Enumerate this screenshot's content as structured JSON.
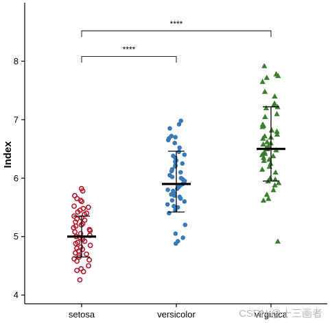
{
  "chart_data": {
    "type": "scatter",
    "subtype": "jitter-strip with mean ± sd error bars",
    "ylabel": "Index",
    "xlabel": "",
    "ylim": [
      3.85,
      9.0
    ],
    "yticks": [
      4,
      5,
      6,
      7,
      8
    ],
    "categories": [
      "setosa",
      "versicolor",
      "virginica"
    ],
    "grid": false,
    "series": [
      {
        "category": "setosa",
        "marker": "open-circle",
        "color": "#b2182b",
        "mean": 5.0,
        "sd_lower": 4.65,
        "sd_upper": 5.35,
        "values": [
          5.82,
          5.78,
          5.7,
          5.65,
          5.62,
          5.6,
          5.52,
          5.5,
          5.48,
          5.45,
          5.42,
          5.4,
          5.38,
          5.35,
          5.32,
          5.3,
          5.28,
          5.25,
          5.22,
          5.2,
          5.18,
          5.15,
          5.12,
          5.1,
          5.08,
          5.05,
          5.02,
          5.0,
          4.98,
          4.95,
          4.92,
          4.9,
          4.88,
          4.85,
          4.82,
          4.8,
          4.78,
          4.75,
          4.72,
          4.7,
          4.68,
          4.65,
          4.62,
          4.6,
          4.58,
          4.5,
          4.45,
          4.42,
          4.4,
          4.26
        ]
      },
      {
        "category": "versicolor",
        "marker": "filled-circle",
        "color": "#3a7ab6",
        "mean": 5.9,
        "sd_lower": 5.42,
        "sd_upper": 6.46,
        "values": [
          6.98,
          6.92,
          6.85,
          6.72,
          6.7,
          6.68,
          6.65,
          6.6,
          6.52,
          6.45,
          6.4,
          6.38,
          6.35,
          6.3,
          6.28,
          6.25,
          6.22,
          6.2,
          6.15,
          6.12,
          6.1,
          6.05,
          6.02,
          6.0,
          5.98,
          5.95,
          5.92,
          5.9,
          5.88,
          5.85,
          5.82,
          5.8,
          5.78,
          5.75,
          5.72,
          5.7,
          5.68,
          5.65,
          5.62,
          5.6,
          5.55,
          5.52,
          5.5,
          5.45,
          5.4,
          5.2,
          5.05,
          4.98,
          4.92,
          4.88
        ]
      },
      {
        "category": "virginica",
        "marker": "filled-triangle",
        "color": "#3b7e2f",
        "mean": 6.5,
        "sd_lower": 5.95,
        "sd_upper": 7.22,
        "values": [
          7.92,
          7.78,
          7.75,
          7.72,
          7.65,
          7.48,
          7.4,
          7.28,
          7.25,
          7.22,
          7.2,
          7.1,
          7.05,
          6.92,
          6.9,
          6.88,
          6.82,
          6.8,
          6.75,
          6.72,
          6.7,
          6.68,
          6.62,
          6.6,
          6.58,
          6.55,
          6.52,
          6.5,
          6.48,
          6.45,
          6.42,
          6.4,
          6.38,
          6.35,
          6.32,
          6.3,
          6.25,
          6.2,
          6.15,
          6.1,
          6.0,
          5.98,
          5.95,
          5.92,
          5.88,
          5.8,
          5.72,
          5.65,
          5.62,
          4.92
        ]
      }
    ],
    "annotations": [
      {
        "from": "setosa",
        "to": "versicolor",
        "label": "****",
        "y": 8.08
      },
      {
        "from": "setosa",
        "to": "virginica",
        "label": "****",
        "y": 8.52
      }
    ],
    "watermark": "CSDN @十三画者"
  }
}
